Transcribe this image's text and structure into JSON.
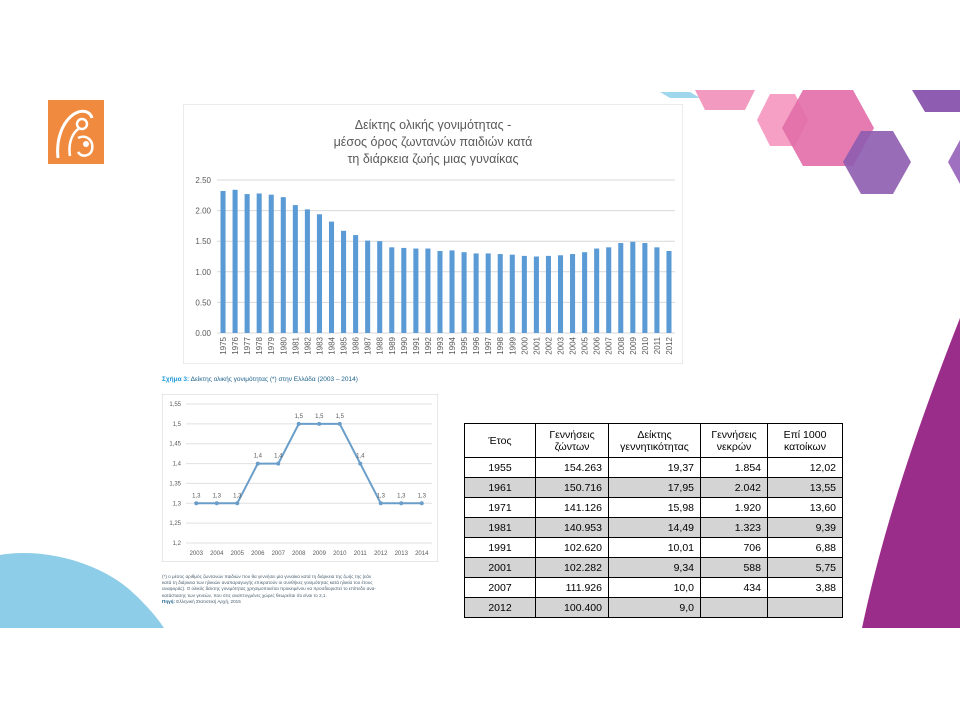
{
  "colors": {
    "accent_purple": "#9b2d8a",
    "hex_pink": "#f08ab0",
    "hex_purple": "#8e5cb0",
    "wave_blue": "#8dcde8",
    "logo_orange": "#f08a3e",
    "bar_blue": "#5b9bd5",
    "line_blue": "#6a9ec9"
  },
  "icons": {
    "logo": "mother-child-icon"
  },
  "chart1": {
    "title_lines": [
      "Δείκτης ολικής γονιμότητας -",
      "μέσος όρος ζωντανών παιδιών κατά",
      "τη διάρκεια ζωής μιας γυναίκας"
    ]
  },
  "chart2": {
    "caption_prefix": "Σχήμα 3:",
    "caption_text": "Δείκτης ολικής γονιμότητας (*) στην Ελλάδα (2003 – 2014)"
  },
  "notes": {
    "lines": [
      "(*) ο μέσος αριθμός ζωντανών παιδιών που θα γεννήσει μία γυναίκα κατά τη διάρκεια της ζωής της (εάν",
      "κατά τη διάρκεια των ηλικιών αναπαραγωγής επικρατούν οι συνθήκες γονιμότητας κατά ηλικία του έτους",
      "αναφοράς). Ο ολικός δείκτης γονιμότητας χρησιμοποιείται προκειμένου να προσδιοριστεί το επίπεδο ανα-",
      "κατάστασης των γενεών, που στις αναπτυγμένες χώρες θεωρείται ότι είναι το 2,1."
    ],
    "source_label": "Πηγή:",
    "source_text": "Ελληνική Στατιστική Αρχή, 2015"
  },
  "chart_data": [
    {
      "type": "bar",
      "title": "Δείκτης ολικής γονιμότητας - μέσος όρος ζωντανών παιδιών κατά τη διάρκεια ζωής μιας γυναίκας",
      "categories": [
        "1975",
        "1976",
        "1977",
        "1978",
        "1979",
        "1980",
        "1981",
        "1982",
        "1983",
        "1984",
        "1985",
        "1986",
        "1987",
        "1988",
        "1989",
        "1990",
        "1991",
        "1992",
        "1993",
        "1994",
        "1995",
        "1996",
        "1997",
        "1998",
        "1999",
        "2000",
        "2001",
        "2002",
        "2003",
        "2004",
        "2005",
        "2006",
        "2007",
        "2008",
        "2009",
        "2010",
        "2011",
        "2012"
      ],
      "values": [
        2.32,
        2.34,
        2.27,
        2.28,
        2.26,
        2.22,
        2.09,
        2.02,
        1.94,
        1.82,
        1.67,
        1.6,
        1.51,
        1.5,
        1.4,
        1.39,
        1.38,
        1.38,
        1.34,
        1.35,
        1.32,
        1.3,
        1.3,
        1.29,
        1.28,
        1.26,
        1.25,
        1.26,
        1.27,
        1.29,
        1.32,
        1.38,
        1.4,
        1.47,
        1.49,
        1.47,
        1.4,
        1.34
      ],
      "yticks": [
        "2.50",
        "2.00",
        "1.50",
        "1.00",
        "0.50",
        "0.00"
      ],
      "ylim": [
        0,
        2.5
      ],
      "grid": true,
      "legend": "none"
    },
    {
      "type": "line",
      "categories": [
        "2003",
        "2004",
        "2005",
        "2006",
        "2007",
        "2008",
        "2009",
        "2010",
        "2011",
        "2012",
        "2013",
        "2014"
      ],
      "values": [
        1.3,
        1.3,
        1.3,
        1.4,
        1.4,
        1.5,
        1.5,
        1.5,
        1.4,
        1.3,
        1.3,
        1.3
      ],
      "data_labels": [
        "1,3",
        "1,3",
        "1,3",
        "1,4",
        "1,4",
        "1,5",
        "1,5",
        "1,5",
        "1,4",
        "1,3",
        "1,3",
        "1,3"
      ],
      "yticks": [
        "1,55",
        "1,5",
        "1,45",
        "1,4",
        "1,35",
        "1,3",
        "1,25",
        "1,2"
      ],
      "ylim": [
        1.2,
        1.55
      ],
      "grid": true,
      "legend": "none"
    },
    {
      "type": "table",
      "headers": [
        [
          "Έτος"
        ],
        [
          "Γεννήσεις",
          "ζώντων"
        ],
        [
          "Δείκτης",
          "γεννητικότητας"
        ],
        [
          "Γεννήσεις",
          "νεκρών"
        ],
        [
          "Επί 1000",
          "κατοίκων"
        ]
      ],
      "rows": [
        [
          "1955",
          "154.263",
          "19,37",
          "1.854",
          "12,02"
        ],
        [
          "1961",
          "150.716",
          "17,95",
          "2.042",
          "13,55"
        ],
        [
          "1971",
          "141.126",
          "15,98",
          "1.920",
          "13,60"
        ],
        [
          "1981",
          "140.953",
          "14,49",
          "1.323",
          "9,39"
        ],
        [
          "1991",
          "102.620",
          "10,01",
          "706",
          "6,88"
        ],
        [
          "2001",
          "102.282",
          "9,34",
          "588",
          "5,75"
        ],
        [
          "2007",
          "111.926",
          "10,0",
          "434",
          "3,88"
        ],
        [
          "2012",
          "100.400",
          "9,0",
          "",
          ""
        ]
      ]
    }
  ]
}
